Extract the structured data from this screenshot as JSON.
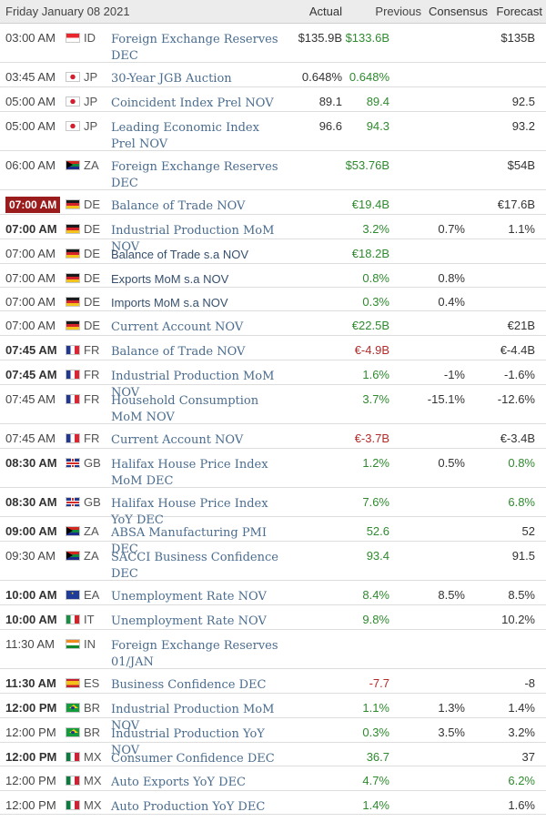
{
  "header": {
    "date": "Friday January 08 2021",
    "actual": "Actual",
    "previous": "Previous",
    "consensus": "Consensus",
    "forecast": "Forecast"
  },
  "rows": [
    {
      "time": "03:00 AM",
      "bold": false,
      "highlight": false,
      "flag_icon": "indonesia-flag-icon",
      "country": "ID",
      "event": "Foreign Exchange Reserves DEC",
      "plain": false,
      "actual": "$135.9B",
      "previous": "$133.6B",
      "prev_color": "#2f8a2f",
      "consensus": "",
      "forecast": "$135B",
      "fore_color": "#333333"
    },
    {
      "time": "03:45 AM",
      "bold": false,
      "highlight": false,
      "flag_icon": "japan-flag-icon",
      "country": "JP",
      "event": "30-Year JGB Auction",
      "plain": false,
      "actual": "0.648%",
      "previous": "0.648%",
      "prev_color": "#2f8a2f",
      "consensus": "",
      "forecast": "",
      "fore_color": "#333333"
    },
    {
      "time": "05:00 AM",
      "bold": false,
      "highlight": false,
      "flag_icon": "japan-flag-icon",
      "country": "JP",
      "event": "Coincident Index Prel NOV",
      "plain": false,
      "actual": "89.1",
      "previous": "89.4",
      "prev_color": "#2f8a2f",
      "consensus": "",
      "forecast": "92.5",
      "fore_color": "#333333"
    },
    {
      "time": "05:00 AM",
      "bold": false,
      "highlight": false,
      "flag_icon": "japan-flag-icon",
      "country": "JP",
      "event": "Leading Economic Index Prel NOV",
      "plain": false,
      "actual": "96.6",
      "previous": "94.3",
      "prev_color": "#2f8a2f",
      "consensus": "",
      "forecast": "93.2",
      "fore_color": "#333333"
    },
    {
      "time": "06:00 AM",
      "bold": false,
      "highlight": false,
      "flag_icon": "south-africa-flag-icon",
      "country": "ZA",
      "event": "Foreign Exchange Reserves DEC",
      "plain": false,
      "actual": "",
      "previous": "$53.76B",
      "prev_color": "#2f8a2f",
      "consensus": "",
      "forecast": "$54B",
      "fore_color": "#333333"
    },
    {
      "time": "07:00 AM",
      "bold": true,
      "highlight": true,
      "flag_icon": "germany-flag-icon",
      "country": "DE",
      "event": "Balance of Trade NOV",
      "plain": false,
      "actual": "",
      "previous": "€19.4B",
      "prev_color": "#2f8a2f",
      "consensus": "",
      "forecast": "€17.6B",
      "fore_color": "#333333"
    },
    {
      "time": "07:00 AM",
      "bold": true,
      "highlight": false,
      "flag_icon": "germany-flag-icon",
      "country": "DE",
      "event": "Industrial Production MoM NOV",
      "plain": false,
      "actual": "",
      "previous": "3.2%",
      "prev_color": "#2f8a2f",
      "consensus": "0.7%",
      "forecast": "1.1%",
      "fore_color": "#333333"
    },
    {
      "time": "07:00 AM",
      "bold": false,
      "highlight": false,
      "flag_icon": "germany-flag-icon",
      "country": "DE",
      "event": "Balance of Trade s.a NOV",
      "plain": true,
      "actual": "",
      "previous": "€18.2B",
      "prev_color": "#2f8a2f",
      "consensus": "",
      "forecast": "",
      "fore_color": "#333333"
    },
    {
      "time": "07:00 AM",
      "bold": false,
      "highlight": false,
      "flag_icon": "germany-flag-icon",
      "country": "DE",
      "event": "Exports MoM s.a NOV",
      "plain": true,
      "actual": "",
      "previous": "0.8%",
      "prev_color": "#2f8a2f",
      "consensus": "0.8%",
      "forecast": "",
      "fore_color": "#333333"
    },
    {
      "time": "07:00 AM",
      "bold": false,
      "highlight": false,
      "flag_icon": "germany-flag-icon",
      "country": "DE",
      "event": "Imports MoM s.a NOV",
      "plain": true,
      "actual": "",
      "previous": "0.3%",
      "prev_color": "#2f8a2f",
      "consensus": "0.4%",
      "forecast": "",
      "fore_color": "#333333"
    },
    {
      "time": "07:00 AM",
      "bold": false,
      "highlight": false,
      "flag_icon": "germany-flag-icon",
      "country": "DE",
      "event": "Current Account NOV",
      "plain": false,
      "actual": "",
      "previous": "€22.5B",
      "prev_color": "#2f8a2f",
      "consensus": "",
      "forecast": "€21B",
      "fore_color": "#333333"
    },
    {
      "time": "07:45 AM",
      "bold": true,
      "highlight": false,
      "flag_icon": "france-flag-icon",
      "country": "FR",
      "event": "Balance of Trade NOV",
      "plain": false,
      "actual": "",
      "previous": "€-4.9B",
      "prev_color": "#b52a2a",
      "consensus": "",
      "forecast": "€-4.4B",
      "fore_color": "#333333"
    },
    {
      "time": "07:45 AM",
      "bold": true,
      "highlight": false,
      "flag_icon": "france-flag-icon",
      "country": "FR",
      "event": "Industrial Production MoM NOV",
      "plain": false,
      "actual": "",
      "previous": "1.6%",
      "prev_color": "#2f8a2f",
      "consensus": "-1%",
      "forecast": "-1.6%",
      "fore_color": "#333333"
    },
    {
      "time": "07:45 AM",
      "bold": false,
      "highlight": false,
      "flag_icon": "france-flag-icon",
      "country": "FR",
      "event": "Household Consumption MoM NOV",
      "plain": false,
      "actual": "",
      "previous": "3.7%",
      "prev_color": "#2f8a2f",
      "consensus": "-15.1%",
      "forecast": "-12.6%",
      "fore_color": "#333333"
    },
    {
      "time": "07:45 AM",
      "bold": false,
      "highlight": false,
      "flag_icon": "france-flag-icon",
      "country": "FR",
      "event": "Current Account NOV",
      "plain": false,
      "actual": "",
      "previous": "€-3.7B",
      "prev_color": "#b52a2a",
      "consensus": "",
      "forecast": "€-3.4B",
      "fore_color": "#333333"
    },
    {
      "time": "08:30 AM",
      "bold": true,
      "highlight": false,
      "flag_icon": "uk-flag-icon",
      "country": "GB",
      "event": "Halifax House Price Index MoM DEC",
      "plain": false,
      "actual": "",
      "previous": "1.2%",
      "prev_color": "#2f8a2f",
      "consensus": "0.5%",
      "forecast": "0.8%",
      "fore_color": "#2f8a2f"
    },
    {
      "time": "08:30 AM",
      "bold": true,
      "highlight": false,
      "flag_icon": "uk-flag-icon",
      "country": "GB",
      "event": "Halifax House Price Index YoY DEC",
      "plain": false,
      "actual": "",
      "previous": "7.6%",
      "prev_color": "#2f8a2f",
      "consensus": "",
      "forecast": "6.8%",
      "fore_color": "#2f8a2f"
    },
    {
      "time": "09:00 AM",
      "bold": true,
      "highlight": false,
      "flag_icon": "south-africa-flag-icon",
      "country": "ZA",
      "event": "ABSA Manufacturing PMI DEC",
      "plain": false,
      "actual": "",
      "previous": "52.6",
      "prev_color": "#2f8a2f",
      "consensus": "",
      "forecast": "52",
      "fore_color": "#333333"
    },
    {
      "time": "09:30 AM",
      "bold": false,
      "highlight": false,
      "flag_icon": "south-africa-flag-icon",
      "country": "ZA",
      "event": "SACCI Business Confidence DEC",
      "plain": false,
      "actual": "",
      "previous": "93.4",
      "prev_color": "#2f8a2f",
      "consensus": "",
      "forecast": "91.5",
      "fore_color": "#333333"
    },
    {
      "time": "10:00 AM",
      "bold": true,
      "highlight": false,
      "flag_icon": "euro-area-flag-icon",
      "country": "EA",
      "event": "Unemployment Rate NOV",
      "plain": false,
      "actual": "",
      "previous": "8.4%",
      "prev_color": "#2f8a2f",
      "consensus": "8.5%",
      "forecast": "8.5%",
      "fore_color": "#333333"
    },
    {
      "time": "10:00 AM",
      "bold": true,
      "highlight": false,
      "flag_icon": "italy-flag-icon",
      "country": "IT",
      "event": "Unemployment Rate NOV",
      "plain": false,
      "actual": "",
      "previous": "9.8%",
      "prev_color": "#2f8a2f",
      "consensus": "",
      "forecast": "10.2%",
      "fore_color": "#333333"
    },
    {
      "time": "11:30 AM",
      "bold": false,
      "highlight": false,
      "flag_icon": "india-flag-icon",
      "country": "IN",
      "event": "Foreign Exchange Reserves 01/JAN",
      "plain": false,
      "actual": "",
      "previous": "",
      "prev_color": "#2f8a2f",
      "consensus": "",
      "forecast": "",
      "fore_color": "#333333"
    },
    {
      "time": "11:30 AM",
      "bold": true,
      "highlight": false,
      "flag_icon": "spain-flag-icon",
      "country": "ES",
      "event": "Business Confidence DEC",
      "plain": false,
      "actual": "",
      "previous": "-7.7",
      "prev_color": "#b52a2a",
      "consensus": "",
      "forecast": "-8",
      "fore_color": "#333333"
    },
    {
      "time": "12:00 PM",
      "bold": true,
      "highlight": false,
      "flag_icon": "brazil-flag-icon",
      "country": "BR",
      "event": "Industrial Production MoM NOV",
      "plain": false,
      "actual": "",
      "previous": "1.1%",
      "prev_color": "#2f8a2f",
      "consensus": "1.3%",
      "forecast": "1.4%",
      "fore_color": "#333333"
    },
    {
      "time": "12:00 PM",
      "bold": false,
      "highlight": false,
      "flag_icon": "brazil-flag-icon",
      "country": "BR",
      "event": "Industrial Production YoY NOV",
      "plain": false,
      "actual": "",
      "previous": "0.3%",
      "prev_color": "#2f8a2f",
      "consensus": "3.5%",
      "forecast": "3.2%",
      "fore_color": "#333333"
    },
    {
      "time": "12:00 PM",
      "bold": true,
      "highlight": false,
      "flag_icon": "mexico-flag-icon",
      "country": "MX",
      "event": "Consumer Confidence DEC",
      "plain": false,
      "actual": "",
      "previous": "36.7",
      "prev_color": "#2f8a2f",
      "consensus": "",
      "forecast": "37",
      "fore_color": "#333333"
    },
    {
      "time": "12:00 PM",
      "bold": false,
      "highlight": false,
      "flag_icon": "mexico-flag-icon",
      "country": "MX",
      "event": "Auto Exports YoY DEC",
      "plain": false,
      "actual": "",
      "previous": "4.7%",
      "prev_color": "#2f8a2f",
      "consensus": "",
      "forecast": "6.2%",
      "fore_color": "#2f8a2f"
    },
    {
      "time": "12:00 PM",
      "bold": false,
      "highlight": false,
      "flag_icon": "mexico-flag-icon",
      "country": "MX",
      "event": "Auto Production YoY DEC",
      "plain": false,
      "actual": "",
      "previous": "1.4%",
      "prev_color": "#2f8a2f",
      "consensus": "",
      "forecast": "1.6%",
      "fore_color": "#333333"
    }
  ]
}
